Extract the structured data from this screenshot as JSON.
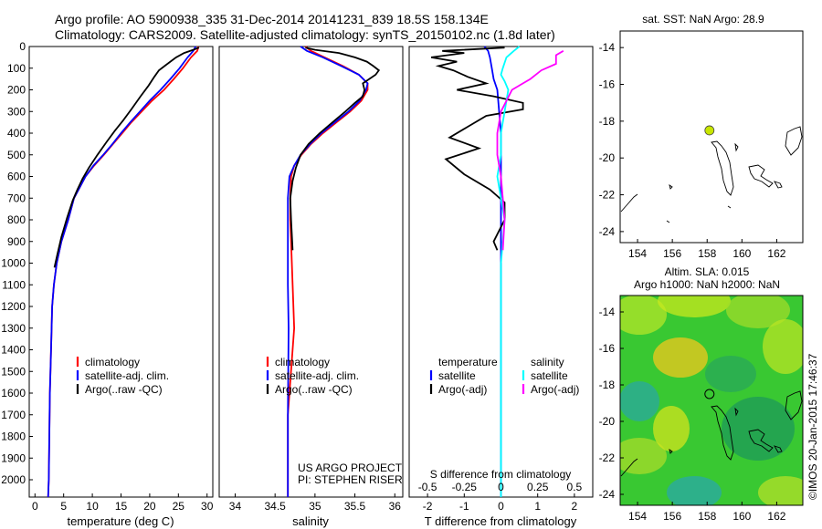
{
  "header": {
    "line1": "Argo profile: AO 5900938_335 31-Dec-2014 20141231_839 18.5S 158.134E",
    "line2": "Climatology: CARS2009. Satellite-adjusted climatology: synTS_20150102.nc (1.8d later)"
  },
  "chart_data": [
    {
      "id": "temperature",
      "type": "line",
      "xlabel": "temperature (deg C)",
      "ylabel": "",
      "xlim": [
        -1,
        31
      ],
      "ylim": [
        2080,
        0
      ],
      "xticks": [
        0,
        5,
        10,
        15,
        20,
        25,
        30
      ],
      "yticks": [
        0,
        100,
        200,
        300,
        400,
        500,
        600,
        700,
        800,
        900,
        1000,
        1100,
        1200,
        1300,
        1400,
        1500,
        1600,
        1700,
        1800,
        1900,
        2000
      ],
      "legend": {
        "placement": "lower-center",
        "entries": [
          {
            "label": "climatology",
            "color": "#ff0000"
          },
          {
            "label": "satellite-adj. clim.",
            "color": "#0000ff"
          },
          {
            "label": "Argo(..raw -QC)",
            "color": "#000000"
          }
        ]
      },
      "series": [
        {
          "name": "climatology",
          "color": "#ff0000",
          "x": [
            28.5,
            28.3,
            27.2,
            25.8,
            24.2,
            22.5,
            20.4,
            18.6,
            16.8,
            15.2,
            13.6,
            12.0,
            10.3,
            8.8,
            7.8,
            6.8,
            5.8,
            4.6,
            3.8,
            3.3,
            3.0,
            2.8,
            2.6,
            2.5,
            2.4,
            2.3
          ],
          "y": [
            0,
            20,
            50,
            100,
            150,
            200,
            250,
            300,
            350,
            400,
            450,
            500,
            550,
            600,
            650,
            700,
            800,
            900,
            1000,
            1100,
            1200,
            1400,
            1600,
            1800,
            2000,
            2080
          ]
        },
        {
          "name": "satellite-adj. clim.",
          "color": "#0000ff",
          "x": [
            28.0,
            27.6,
            26.6,
            25.2,
            23.6,
            21.9,
            20.0,
            18.3,
            16.6,
            15.0,
            13.5,
            11.9,
            10.2,
            8.8,
            7.8,
            6.8,
            5.8,
            4.6,
            3.8,
            3.3,
            3.0,
            2.8,
            2.6,
            2.5,
            2.4,
            2.3
          ],
          "y": [
            0,
            20,
            50,
            100,
            150,
            200,
            250,
            300,
            350,
            400,
            450,
            500,
            550,
            600,
            650,
            700,
            800,
            900,
            1000,
            1100,
            1200,
            1400,
            1600,
            1800,
            2000,
            2080
          ]
        },
        {
          "name": "Argo(..raw -QC)",
          "color": "#000000",
          "x": [
            28.6,
            27.6,
            26.0,
            24.6,
            23.6,
            22.6,
            21.6,
            20.8,
            19.8,
            18.4,
            16.8,
            15.4,
            13.9,
            12.5,
            10.9,
            9.4,
            8.3,
            7.4,
            6.6,
            5.6,
            4.6,
            3.9,
            3.4
          ],
          "y": [
            5,
            15,
            30,
            50,
            70,
            90,
            110,
            140,
            180,
            230,
            290,
            340,
            390,
            440,
            500,
            560,
            610,
            660,
            710,
            790,
            880,
            960,
            1020
          ]
        }
      ]
    },
    {
      "id": "salinity",
      "type": "line",
      "xlabel": "salinity",
      "ylabel": "",
      "xlim": [
        33.8,
        36.1
      ],
      "ylim": [
        2080,
        0
      ],
      "xticks": [
        34,
        34.5,
        35,
        35.5,
        36
      ],
      "legend": {
        "placement": "lower-center",
        "entries": [
          {
            "label": "climatology",
            "color": "#ff0000"
          },
          {
            "label": "satellite-adj. clim.",
            "color": "#0000ff"
          },
          {
            "label": "Argo(..raw -QC)",
            "color": "#000000"
          }
        ]
      },
      "annotations": [
        "US ARGO PROJECT",
        "PI: STEPHEN RISER"
      ],
      "series": [
        {
          "name": "climatology",
          "color": "#ff0000",
          "x": [
            34.88,
            34.95,
            35.12,
            35.35,
            35.55,
            35.66,
            35.66,
            35.58,
            35.44,
            35.27,
            35.1,
            34.95,
            34.83,
            34.74,
            34.7,
            34.69,
            34.69,
            34.7,
            34.72,
            34.74,
            34.66,
            34.66
          ],
          "y": [
            0,
            20,
            50,
            90,
            130,
            170,
            200,
            250,
            300,
            350,
            400,
            450,
            500,
            550,
            600,
            700,
            800,
            900,
            1100,
            1300,
            1700,
            2080
          ]
        },
        {
          "name": "satellite-adj. clim.",
          "color": "#0000ff",
          "x": [
            34.82,
            34.9,
            35.1,
            35.33,
            35.55,
            35.66,
            35.64,
            35.56,
            35.42,
            35.25,
            35.08,
            34.94,
            34.82,
            34.74,
            34.68,
            34.66,
            34.66,
            34.66,
            34.66,
            34.67,
            34.66,
            34.66
          ],
          "y": [
            0,
            20,
            50,
            90,
            130,
            170,
            200,
            250,
            300,
            350,
            400,
            450,
            500,
            550,
            600,
            700,
            800,
            900,
            1100,
            1300,
            1700,
            2080
          ]
        },
        {
          "name": "Argo(..raw -QC)",
          "color": "#000000",
          "x": [
            34.88,
            35.0,
            35.3,
            35.5,
            35.65,
            35.73,
            35.8,
            35.76,
            35.68,
            35.6,
            35.62,
            35.6,
            35.5,
            35.38,
            35.22,
            35.06,
            34.92,
            34.82,
            34.76,
            34.72,
            34.69,
            34.7,
            34.72
          ],
          "y": [
            5,
            15,
            30,
            50,
            70,
            90,
            110,
            130,
            150,
            170,
            200,
            230,
            260,
            300,
            350,
            400,
            450,
            500,
            560,
            620,
            700,
            800,
            940
          ]
        }
      ]
    },
    {
      "id": "difference",
      "type": "line",
      "xlabel": "T difference from climatology",
      "xlabel_top": "S difference from climatology",
      "ylabel": "",
      "xlim": [
        -2.5,
        2.5
      ],
      "ylim": [
        2080,
        0
      ],
      "xticks": [
        -2,
        -1,
        0,
        1,
        2
      ],
      "x2ticks": [
        "-0.5",
        "-0.25",
        "0",
        "0.25",
        "0.5"
      ],
      "legend": {
        "placement": "lower-center",
        "groups": [
          {
            "title": "temperature",
            "entries": [
              {
                "label": "satellite",
                "color": "#0000ff"
              },
              {
                "label": "Argo(-adj)",
                "color": "#000000"
              }
            ]
          },
          {
            "title": "salinity",
            "entries": [
              {
                "label": "satellite",
                "color": "#00ffff"
              },
              {
                "label": "Argo(-adj)",
                "color": "#ff00ff"
              }
            ]
          }
        ]
      },
      "series": [
        {
          "name": "temperature satellite",
          "color": "#0000ff",
          "x": [
            -0.45,
            -0.35,
            -0.3,
            -0.25,
            -0.2,
            -0.1,
            -0.05,
            0,
            0,
            0,
            0
          ],
          "y": [
            0,
            20,
            50,
            100,
            150,
            200,
            300,
            400,
            600,
            1000,
            2080
          ]
        },
        {
          "name": "temperature Argo(-adj)",
          "color": "#000000",
          "x": [
            0.1,
            -1.6,
            -1.0,
            -1.9,
            -1.2,
            -1.7,
            -1.3,
            -0.9,
            -0.4,
            -1.2,
            -0.2,
            0.6,
            0.6,
            -0.4,
            -0.9,
            -1.4,
            -0.6,
            -1.5,
            -1.0,
            -0.3,
            0.1,
            0.1,
            -0.2,
            -0.1
          ],
          "y": [
            5,
            20,
            30,
            50,
            70,
            90,
            110,
            140,
            170,
            200,
            230,
            260,
            290,
            320,
            370,
            420,
            470,
            520,
            590,
            660,
            720,
            800,
            900,
            940
          ]
        },
        {
          "name": "salinity satellite",
          "color": "#00ffff",
          "x": [
            0.5,
            0.35,
            0.15,
            0.05,
            0.0,
            0.1,
            0.2,
            0.1,
            0.0,
            0.0,
            -0.1,
            0.0,
            0.1,
            0.0,
            0.0,
            0.0
          ],
          "y": [
            0,
            20,
            50,
            100,
            130,
            160,
            200,
            300,
            400,
            500,
            600,
            700,
            800,
            1000,
            1500,
            2080
          ]
        },
        {
          "name": "salinity Argo(-adj)",
          "color": "#ff00ff",
          "x": [
            1.7,
            1.5,
            1.5,
            1.1,
            0.8,
            0.6,
            0.3,
            0.0,
            -0.1,
            -0.1,
            0.0,
            0.05,
            0.1,
            0.05
          ],
          "y": [
            20,
            40,
            80,
            110,
            150,
            170,
            200,
            300,
            400,
            500,
            600,
            700,
            800,
            940
          ]
        }
      ]
    }
  ],
  "sst_map": {
    "title": "sat. SST: NaN Argo: 28.9",
    "xticks": [
      "154",
      "156",
      "158",
      "160",
      "162"
    ],
    "yticks": [
      "-14",
      "-16",
      "-18",
      "-20",
      "-22",
      "-24"
    ],
    "xlim": [
      153,
      163.5
    ],
    "ylim": [
      -24.6,
      -13.1
    ],
    "argo_lon": 158.134,
    "argo_lat": -18.5,
    "marker_color": "#c8e600"
  },
  "sla_map": {
    "title1": "Altim. SLA: 0.015",
    "title2": "Argo h1000: NaN h2000: NaN",
    "xticks": [
      "154",
      "156",
      "158",
      "160",
      "162"
    ],
    "yticks": [
      "-14",
      "-16",
      "-18",
      "-20",
      "-22",
      "-24"
    ],
    "xlim": [
      153,
      163.5
    ],
    "ylim": [
      -24.6,
      -13.1
    ],
    "argo_lon": 158.134,
    "argo_lat": -18.5,
    "background_color": "#39c832"
  },
  "credit": "©IMOS 20-Jan-2015 17:46:37"
}
